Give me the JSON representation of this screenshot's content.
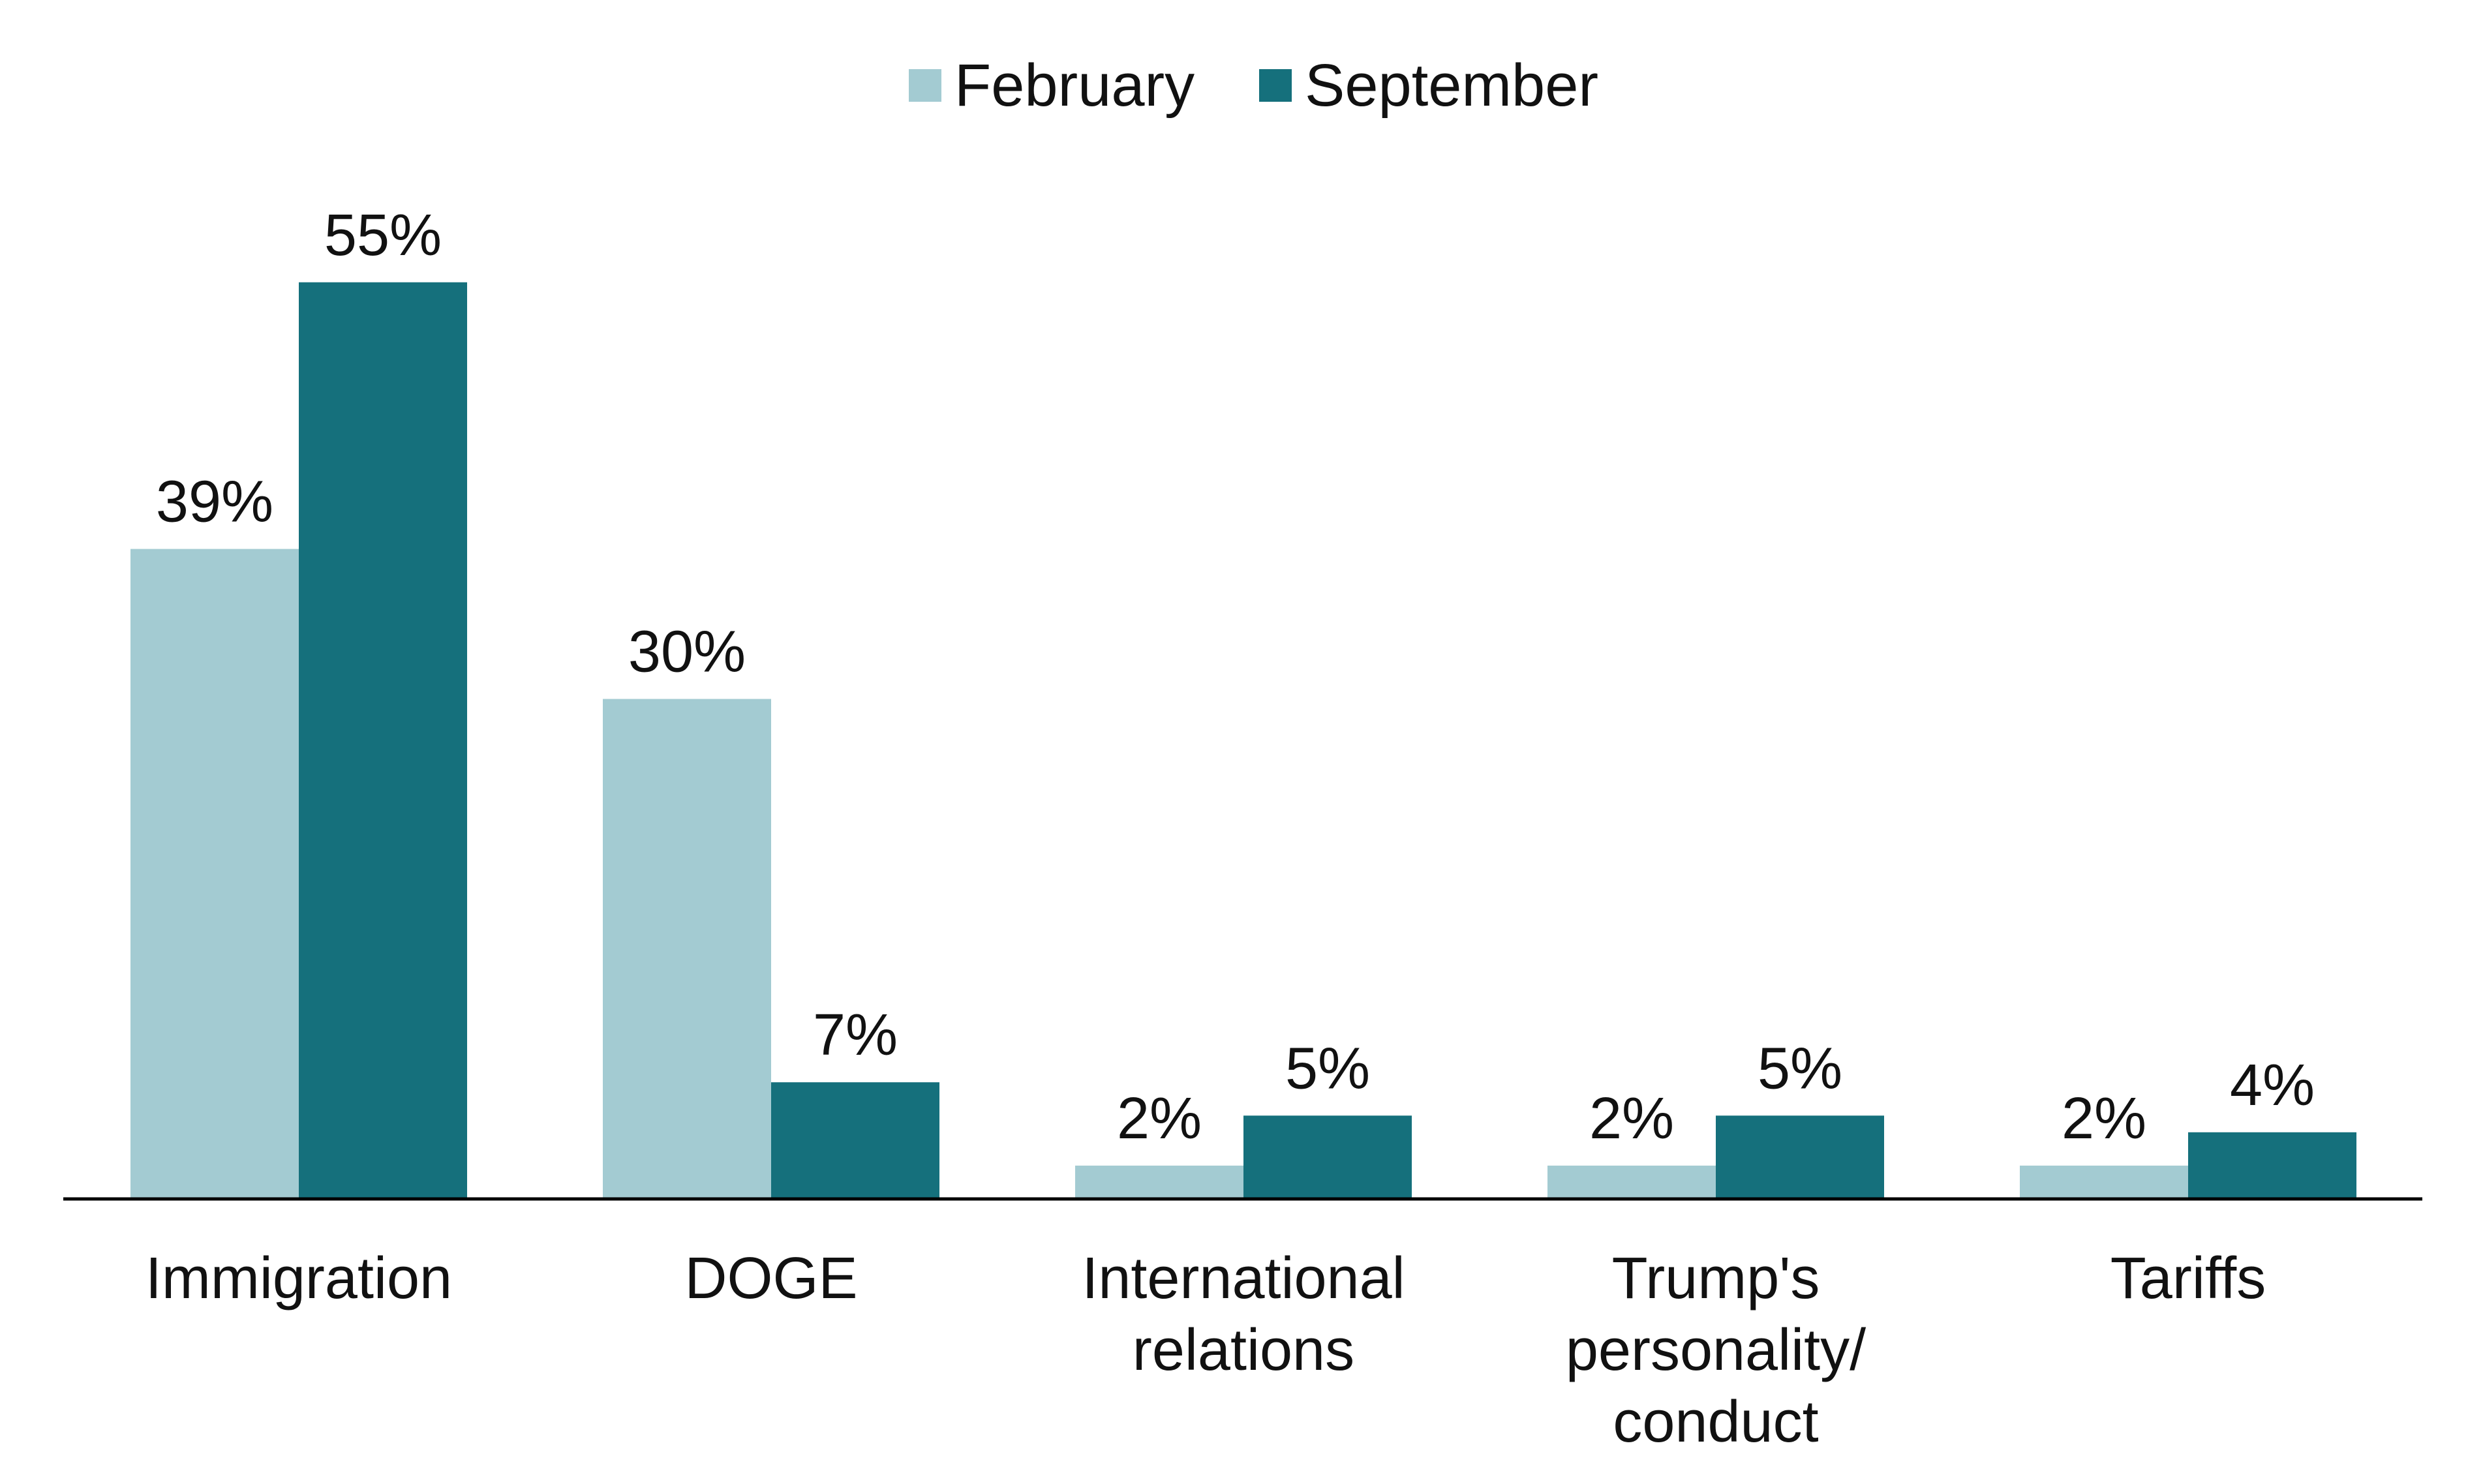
{
  "chart_data": {
    "type": "bar",
    "title": "",
    "xlabel": "",
    "ylabel": "",
    "ylim": [
      0,
      60
    ],
    "grid": false,
    "legend_position": "top-center",
    "categories": [
      [
        "Immigration"
      ],
      [
        "DOGE"
      ],
      [
        "International",
        "relations"
      ],
      [
        "Trump's",
        "personality/",
        "conduct"
      ],
      [
        "Tariffs"
      ]
    ],
    "series": [
      {
        "name": "February",
        "color": "#a3cbd2",
        "values": [
          39,
          30,
          2,
          2,
          2
        ],
        "labels": [
          "39%",
          "30%",
          "2%",
          "2%",
          "2%"
        ]
      },
      {
        "name": "September",
        "color": "#15707c",
        "values": [
          55,
          7,
          5,
          5,
          4
        ],
        "labels": [
          "55%",
          "7%",
          "5%",
          "5%",
          "4%"
        ]
      }
    ]
  }
}
